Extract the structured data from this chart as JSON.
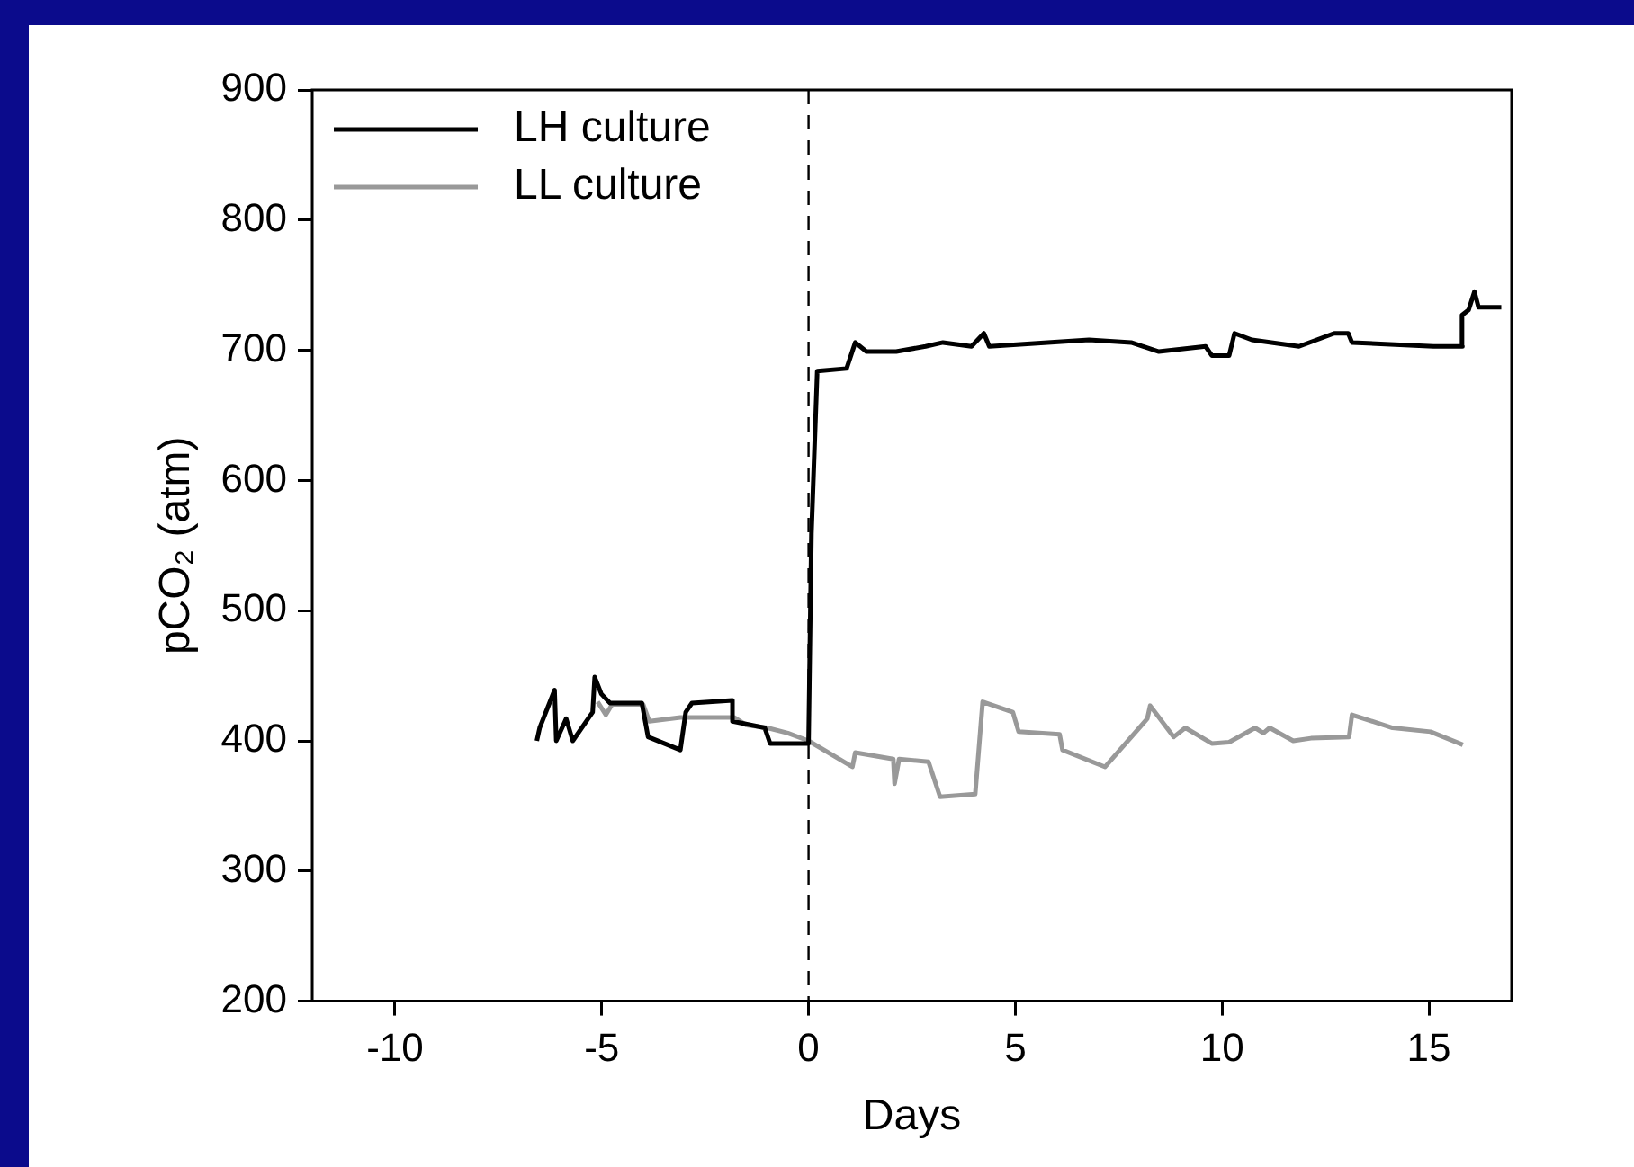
{
  "chart_data": {
    "type": "line",
    "xlabel": "Days",
    "ylabel": "pCO₂ (atm)",
    "xlim": [
      -12,
      17
    ],
    "xticks": [
      -10,
      -5,
      0,
      5,
      10,
      15
    ],
    "ylim": [
      200,
      900
    ],
    "yticks": [
      200,
      300,
      400,
      500,
      600,
      700,
      800,
      900
    ],
    "grid": false,
    "legend": "top left",
    "marker": "none",
    "line_style": "solid",
    "ref_lines": [
      {
        "axis": "x",
        "value": 0,
        "line_style": "dashed",
        "color": "#000000"
      }
    ],
    "series": [
      {
        "name": "LH culture",
        "color": "#000000",
        "x": [
          -6.57,
          -6.5,
          -6.14,
          -6.1,
          -5.86,
          -5.7,
          -5.22,
          -5.17,
          -5.01,
          -4.8,
          -4.03,
          -3.88,
          -3.1,
          -2.97,
          -2.82,
          -1.84,
          -1.84,
          -1.06,
          -0.93,
          0,
          0.07,
          0.21,
          0.92,
          1.13,
          1.4,
          2.12,
          2.83,
          3.25,
          3.94,
          4.24,
          4.37,
          6.78,
          7.8,
          8.47,
          9.6,
          9.75,
          10.17,
          10.3,
          10.72,
          11.86,
          12.71,
          13.05,
          13.14,
          15.11,
          15.81,
          15.8,
          15.96,
          16.1,
          16.2,
          16.75
        ],
        "values": [
          400,
          410,
          439,
          400,
          417,
          400,
          422,
          449,
          436,
          429,
          429,
          403,
          393,
          422,
          429,
          431,
          415,
          410,
          398,
          398,
          559,
          684,
          686,
          706,
          699,
          699,
          703,
          706,
          703,
          713,
          703,
          708,
          706,
          699,
          703,
          696,
          696,
          713,
          708,
          703,
          713,
          713,
          706,
          703,
          703,
          727,
          731,
          745,
          733,
          733
        ]
      },
      {
        "name": "LL culture",
        "color": "#999999",
        "x": [
          -5.1,
          -4.9,
          -4.75,
          -4.0,
          -3.85,
          -3.1,
          -2.9,
          -1.8,
          -1.5,
          -1.0,
          -0.5,
          0,
          1.06,
          1.13,
          2.05,
          2.08,
          2.19,
          2.9,
          3.18,
          4.03,
          4.21,
          4.94,
          5.08,
          6.07,
          6.14,
          7.17,
          8.19,
          8.26,
          8.83,
          9.11,
          9.75,
          10.17,
          10.8,
          11.0,
          11.15,
          11.72,
          12.15,
          13.07,
          13.14,
          14.12,
          15.04,
          15.82
        ],
        "values": [
          430,
          420,
          428,
          428,
          415,
          418,
          418,
          418,
          412,
          410,
          406,
          400,
          380,
          391,
          386,
          367,
          386,
          384,
          357,
          359,
          430,
          422,
          407,
          405,
          393,
          380,
          417,
          427,
          403,
          410,
          398,
          399,
          410,
          406,
          410,
          400,
          402,
          403,
          420,
          410,
          407,
          397
        ]
      }
    ]
  }
}
